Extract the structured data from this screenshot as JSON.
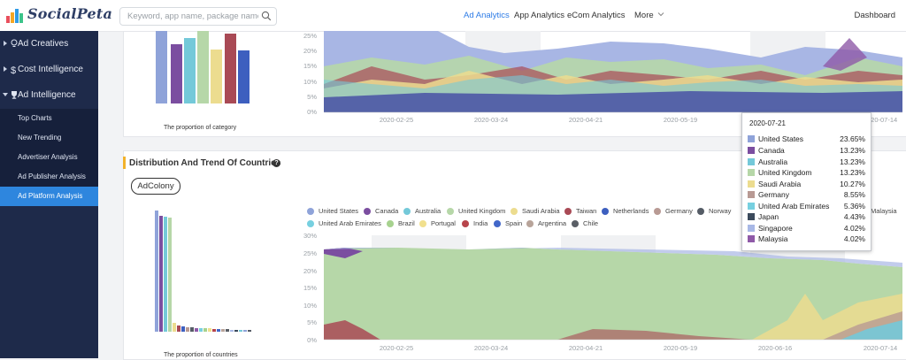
{
  "header": {
    "logo_text": "SocialPeta",
    "search_placeholder": "Keyword, app name, package name, text",
    "nav": [
      "Ad Analytics",
      "App Analytics",
      "eCom Analytics",
      "More"
    ],
    "active_nav": "Ad Analytics",
    "dashboard": "Dashboard"
  },
  "sidebar": {
    "items": [
      {
        "label": "Ad Creatives",
        "icon": "bulb-icon"
      },
      {
        "label": "Cost Intelligence",
        "icon": "dollar-icon"
      },
      {
        "label": "Ad Intelligence",
        "icon": "trophy-icon"
      }
    ],
    "sub_items": [
      "Top Charts",
      "New Trending",
      "Advertiser Analysis",
      "Ad Publisher Analysis",
      "Ad Platform Analysis"
    ],
    "active_sub": "Ad Platform Analysis"
  },
  "section1": {
    "bar_caption": "The proportion of category",
    "y_ticks": [
      "25%",
      "20%",
      "15%",
      "10%",
      "5%",
      "0%"
    ],
    "x_ticks": [
      "2020-02-25",
      "2020-03-24",
      "2020-04-21",
      "2020-05-19",
      "2020-06-16",
      "2020-07-14"
    ]
  },
  "section2": {
    "title": "Distribution And Trend Of Countries",
    "help": "?",
    "chip": "AdColony",
    "bar_caption": "The proportion of countries",
    "y_ticks": [
      "30%",
      "25%",
      "20%",
      "15%",
      "10%",
      "5%",
      "0%"
    ],
    "x_ticks": [
      "2020-02-25",
      "2020-03-24",
      "2020-04-21",
      "2020-05-19",
      "2020-06-16",
      "2020-07-14"
    ],
    "legend": [
      {
        "name": "United States",
        "color": "#8fa3d9"
      },
      {
        "name": "Canada",
        "color": "#7b4ea0"
      },
      {
        "name": "Australia",
        "color": "#74c9d9"
      },
      {
        "name": "United Kingdom",
        "color": "#b6d7a8"
      },
      {
        "name": "Saudi Arabia",
        "color": "#ecdc8f"
      },
      {
        "name": "Taiwan",
        "color": "#a94a55"
      },
      {
        "name": "Netherlands",
        "color": "#3d5fbf"
      },
      {
        "name": "Germany",
        "color": "#b89a94"
      },
      {
        "name": "Norway",
        "color": "#555c66"
      },
      {
        "name": "Malaysia",
        "color": "#8f5aa8"
      },
      {
        "name": "United Arab Emirates",
        "color": "#77d0e0"
      },
      {
        "name": "Brazil",
        "color": "#a7d28f"
      },
      {
        "name": "Portugal",
        "color": "#f1e08e"
      },
      {
        "name": "India",
        "color": "#b7454b"
      },
      {
        "name": "Spain",
        "color": "#4267c9"
      },
      {
        "name": "Argentina",
        "color": "#b8a49a"
      },
      {
        "name": "Chile",
        "color": "#5a5f66"
      }
    ]
  },
  "tooltip": {
    "date": "2020-07-21",
    "rows": [
      {
        "name": "United States",
        "pct": "23.65%",
        "color": "#8fa3d9"
      },
      {
        "name": "Canada",
        "pct": "13.23%",
        "color": "#7b4ea0"
      },
      {
        "name": "Australia",
        "pct": "13.23%",
        "color": "#74c9d9"
      },
      {
        "name": "United Kingdom",
        "pct": "13.23%",
        "color": "#b6d7a8"
      },
      {
        "name": "Saudi Arabia",
        "pct": "10.27%",
        "color": "#ecdc8f"
      },
      {
        "name": "Germany",
        "pct": "8.55%",
        "color": "#b89a94"
      },
      {
        "name": "United Arab Emirates",
        "pct": "5.36%",
        "color": "#77d0e0"
      },
      {
        "name": "Japan",
        "pct": "4.43%",
        "color": "#3b4a5c"
      },
      {
        "name": "Singapore",
        "pct": "4.02%",
        "color": "#a8b8e6"
      },
      {
        "name": "Malaysia",
        "pct": "4.02%",
        "color": "#8f5aa8"
      }
    ]
  }
}
